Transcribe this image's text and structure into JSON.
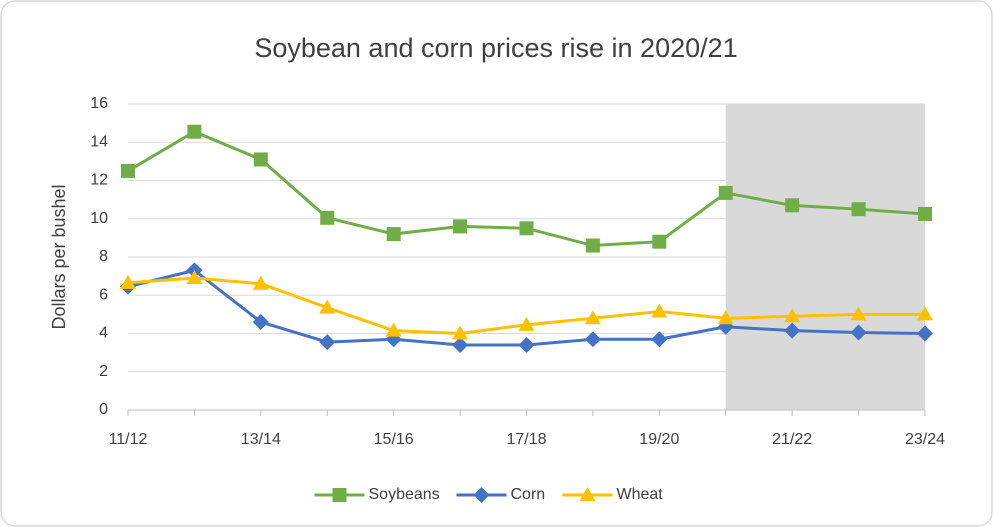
{
  "chart_data": {
    "type": "line",
    "title": "Soybean and corn prices rise in 2020/21",
    "y_label": "Dollars per bushel",
    "categories": [
      "11/12",
      null,
      "13/14",
      null,
      "15/16",
      null,
      "17/18",
      null,
      "19/20",
      null,
      "21/22",
      null,
      "23/24"
    ],
    "series": [
      {
        "name": "Soybeans",
        "color": "#70ad47",
        "marker": "square",
        "values": [
          12.5,
          14.55,
          13.1,
          10.05,
          9.2,
          9.6,
          9.5,
          8.6,
          8.8,
          11.35,
          10.7,
          10.5,
          10.25
        ]
      },
      {
        "name": "Corn",
        "color": "#4472c4",
        "marker": "diamond",
        "values": [
          6.45,
          7.3,
          4.6,
          3.55,
          3.7,
          3.4,
          3.4,
          3.7,
          3.7,
          4.35,
          4.15,
          4.05,
          4.0
        ]
      },
      {
        "name": "Wheat",
        "color": "#ffc000",
        "marker": "triangle",
        "values": [
          6.65,
          6.9,
          6.6,
          5.35,
          4.15,
          4.0,
          4.45,
          4.8,
          5.15,
          4.8,
          4.9,
          5.0,
          5.0
        ]
      }
    ],
    "ylim": [
      0,
      16
    ],
    "yticks": [
      0,
      2,
      4,
      6,
      8,
      10,
      12,
      14,
      16
    ],
    "grid": true,
    "highlight_range": {
      "start": 9,
      "end": 12,
      "color": "#d9d9d9"
    },
    "legend": "bottom"
  }
}
